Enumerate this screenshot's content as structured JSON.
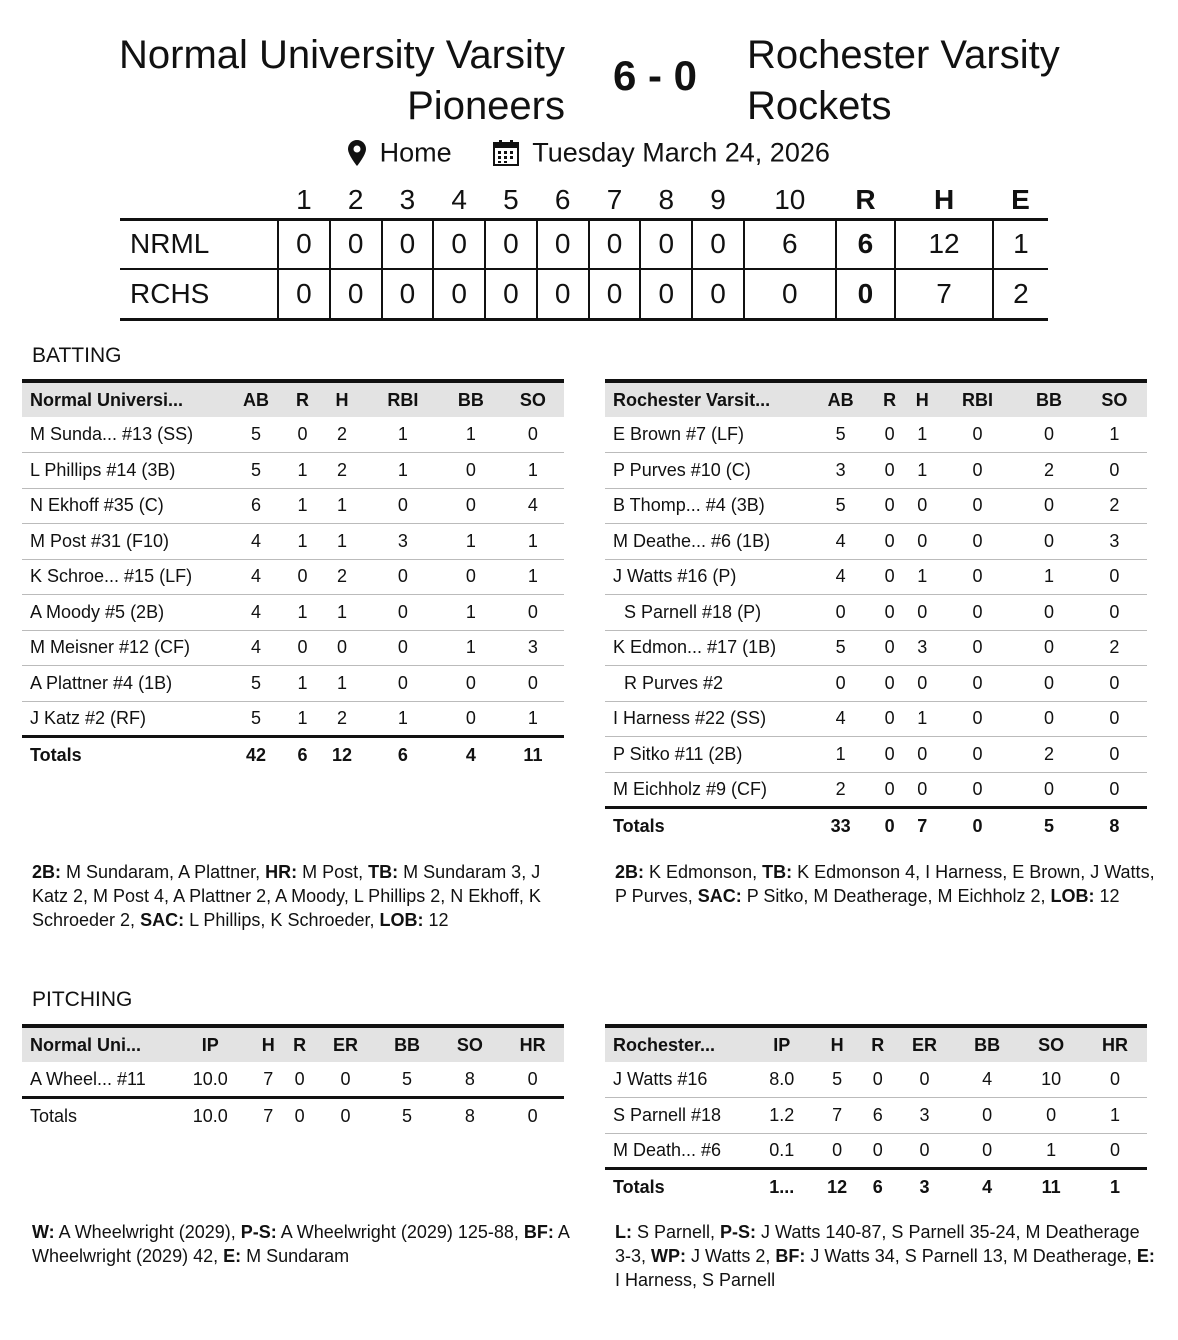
{
  "game": {
    "home_team": "Normal University Varsity Pioneers",
    "away_team": "Rochester Varsity Rockets",
    "score": "6 - 0",
    "location": "Home",
    "date": "Tuesday March 24, 2026"
  },
  "linescore": {
    "headers": [
      "1",
      "2",
      "3",
      "4",
      "5",
      "6",
      "7",
      "8",
      "9",
      "10",
      "R",
      "H",
      "E"
    ],
    "rows": [
      {
        "team": "NRML",
        "cells": [
          "0",
          "0",
          "0",
          "0",
          "0",
          "0",
          "0",
          "0",
          "0",
          "6",
          "6",
          "12",
          "1"
        ]
      },
      {
        "team": "RCHS",
        "cells": [
          "0",
          "0",
          "0",
          "0",
          "0",
          "0",
          "0",
          "0",
          "0",
          "0",
          "0",
          "7",
          "2"
        ]
      }
    ]
  },
  "batting": {
    "title": "BATTING",
    "home": {
      "columns": [
        "Normal Universi...",
        "AB",
        "R",
        "H",
        "RBI",
        "BB",
        "SO"
      ],
      "rows": [
        [
          "M Sunda... #13 (SS)",
          "5",
          "0",
          "2",
          "1",
          "1",
          "0"
        ],
        [
          "L Phillips #14 (3B)",
          "5",
          "1",
          "2",
          "1",
          "0",
          "1"
        ],
        [
          "N Ekhoff #35 (C)",
          "6",
          "1",
          "1",
          "0",
          "0",
          "4"
        ],
        [
          "M Post #31 (F10)",
          "4",
          "1",
          "1",
          "3",
          "1",
          "1"
        ],
        [
          "K Schroe... #15 (LF)",
          "4",
          "0",
          "2",
          "0",
          "0",
          "1"
        ],
        [
          "A Moody #5 (2B)",
          "4",
          "1",
          "1",
          "0",
          "1",
          "0"
        ],
        [
          "M Meisner #12 (CF)",
          "4",
          "0",
          "0",
          "0",
          "1",
          "3"
        ],
        [
          "A Plattner #4 (1B)",
          "5",
          "1",
          "1",
          "0",
          "0",
          "0"
        ],
        [
          "J Katz #2 (RF)",
          "5",
          "1",
          "2",
          "1",
          "0",
          "1"
        ]
      ],
      "totals": [
        "Totals",
        "42",
        "6",
        "12",
        "6",
        "4",
        "11"
      ],
      "notes": [
        [
          "2B:",
          " M Sundaram, A Plattner, "
        ],
        [
          "HR:",
          " M Post, "
        ],
        [
          "TB:",
          " M Sundaram 3, J Katz 2, M Post 4, A Plattner 2, A Moody, L Phillips 2, N Ekhoff, K Schroeder 2, "
        ],
        [
          "SAC:",
          " L Phillips, K Schroeder, "
        ],
        [
          "LOB:",
          " 12"
        ]
      ]
    },
    "away": {
      "columns": [
        "Rochester Varsit...",
        "AB",
        "R",
        "H",
        "RBI",
        "BB",
        "SO"
      ],
      "rows": [
        [
          "E Brown #7 (LF)",
          "5",
          "0",
          "1",
          "0",
          "0",
          "1"
        ],
        [
          "P Purves #10 (C)",
          "3",
          "0",
          "1",
          "0",
          "2",
          "0"
        ],
        [
          "B Thomp... #4 (3B)",
          "5",
          "0",
          "0",
          "0",
          "0",
          "2"
        ],
        [
          "M Deathe... #6 (1B)",
          "4",
          "0",
          "0",
          "0",
          "0",
          "3"
        ],
        [
          "J Watts #16 (P)",
          "4",
          "0",
          "1",
          "0",
          "1",
          "0"
        ],
        [
          "  S Parnell #18 (P)",
          "0",
          "0",
          "0",
          "0",
          "0",
          "0"
        ],
        [
          "K Edmon... #17 (1B)",
          "5",
          "0",
          "3",
          "0",
          "0",
          "2"
        ],
        [
          "  R Purves #2",
          "0",
          "0",
          "0",
          "0",
          "0",
          "0"
        ],
        [
          "I Harness #22 (SS)",
          "4",
          "0",
          "1",
          "0",
          "0",
          "0"
        ],
        [
          "P Sitko #11 (2B)",
          "1",
          "0",
          "0",
          "0",
          "2",
          "0"
        ],
        [
          "M Eichholz #9 (CF)",
          "2",
          "0",
          "0",
          "0",
          "0",
          "0"
        ]
      ],
      "totals": [
        "Totals",
        "33",
        "0",
        "7",
        "0",
        "5",
        "8"
      ],
      "notes": [
        [
          "2B:",
          " K Edmonson, "
        ],
        [
          "TB:",
          " K Edmonson 4, I Harness, E Brown, J Watts, P Purves, "
        ],
        [
          "SAC:",
          " P Sitko, M Deatherage, M Eichholz 2, "
        ],
        [
          "LOB:",
          " 12"
        ]
      ]
    }
  },
  "pitching": {
    "title": "PITCHING",
    "home": {
      "columns": [
        "Normal Uni...",
        "IP",
        "H",
        "R",
        "ER",
        "BB",
        "SO",
        "HR"
      ],
      "rows": [
        [
          "A Wheel... #11",
          "10.0",
          "7",
          "0",
          "0",
          "5",
          "8",
          "0"
        ]
      ],
      "totals": [
        "Totals",
        "10.0",
        "7",
        "0",
        "0",
        "5",
        "8",
        "0"
      ],
      "notes": [
        [
          "W:",
          " A Wheelwright (2029), "
        ],
        [
          "P-S:",
          " A Wheelwright (2029) 125-88, "
        ],
        [
          "BF:",
          " A Wheelwright (2029) 42, "
        ],
        [
          "E:",
          " M Sundaram"
        ]
      ]
    },
    "away": {
      "columns": [
        "Rochester...",
        "IP",
        "H",
        "R",
        "ER",
        "BB",
        "SO",
        "HR"
      ],
      "rows": [
        [
          "J Watts #16",
          "8.0",
          "5",
          "0",
          "0",
          "4",
          "10",
          "0"
        ],
        [
          "S Parnell #18",
          "1.2",
          "7",
          "6",
          "3",
          "0",
          "0",
          "1"
        ],
        [
          "M Death... #6",
          "0.1",
          "0",
          "0",
          "0",
          "0",
          "1",
          "0"
        ]
      ],
      "totals": [
        "Totals",
        "1...",
        "12",
        "6",
        "3",
        "4",
        "11",
        "1"
      ],
      "notes": [
        [
          "L:",
          " S Parnell, "
        ],
        [
          "P-S:",
          " J Watts 140-87, S Parnell 35-24, M Deatherage 3-3, "
        ],
        [
          "WP:",
          " J Watts 2, "
        ],
        [
          "BF:",
          " J Watts 34, S Parnell 13, M Deatherage, "
        ],
        [
          "E:",
          " I Harness, S Parnell"
        ]
      ]
    }
  }
}
